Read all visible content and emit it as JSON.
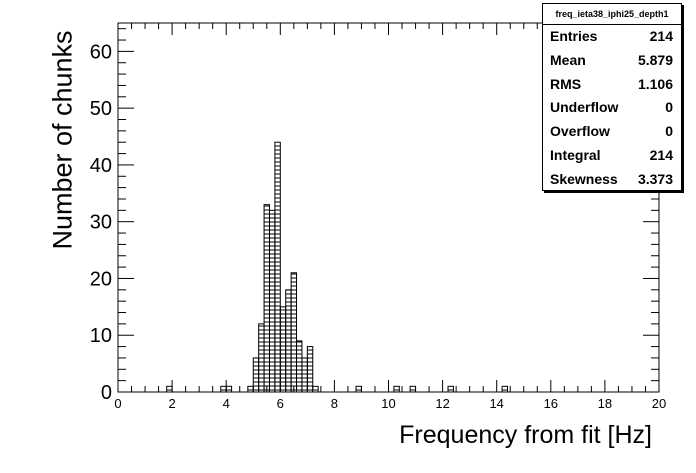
{
  "chart_data": {
    "type": "bar",
    "title": "",
    "xlabel": "Frequency from fit [Hz]",
    "ylabel": "Number of chunks",
    "xlim": [
      0,
      20
    ],
    "ylim": [
      0,
      65
    ],
    "bin_width": 0.2,
    "fill_pattern": "horizontal-hatch",
    "x_ticks": [
      "0",
      "2",
      "4",
      "6",
      "8",
      "10",
      "12",
      "14",
      "16",
      "18",
      "20"
    ],
    "y_ticks": [
      "0",
      "10",
      "20",
      "30",
      "40",
      "50",
      "60"
    ],
    "bins": [
      {
        "x": 1.8,
        "count": 1
      },
      {
        "x": 3.8,
        "count": 1
      },
      {
        "x": 4.0,
        "count": 1
      },
      {
        "x": 4.8,
        "count": 1
      },
      {
        "x": 5.0,
        "count": 6
      },
      {
        "x": 5.2,
        "count": 12
      },
      {
        "x": 5.4,
        "count": 33
      },
      {
        "x": 5.6,
        "count": 32
      },
      {
        "x": 5.8,
        "count": 44
      },
      {
        "x": 6.0,
        "count": 15
      },
      {
        "x": 6.2,
        "count": 18
      },
      {
        "x": 6.4,
        "count": 21
      },
      {
        "x": 6.6,
        "count": 9
      },
      {
        "x": 6.8,
        "count": 6
      },
      {
        "x": 7.0,
        "count": 8
      },
      {
        "x": 7.2,
        "count": 1
      },
      {
        "x": 8.8,
        "count": 1
      },
      {
        "x": 10.2,
        "count": 1
      },
      {
        "x": 10.8,
        "count": 1
      },
      {
        "x": 12.2,
        "count": 1
      },
      {
        "x": 14.2,
        "count": 1
      }
    ]
  },
  "stats": {
    "title": "freq_ieta38_iphi25_depth1",
    "rows": [
      {
        "label": "Entries",
        "value": "214"
      },
      {
        "label": "Mean",
        "value": "5.879"
      },
      {
        "label": "RMS",
        "value": "1.106"
      },
      {
        "label": "Underflow",
        "value": "0"
      },
      {
        "label": "Overflow",
        "value": "0"
      },
      {
        "label": "Integral",
        "value": "214"
      },
      {
        "label": "Skewness",
        "value": "3.373"
      }
    ]
  }
}
